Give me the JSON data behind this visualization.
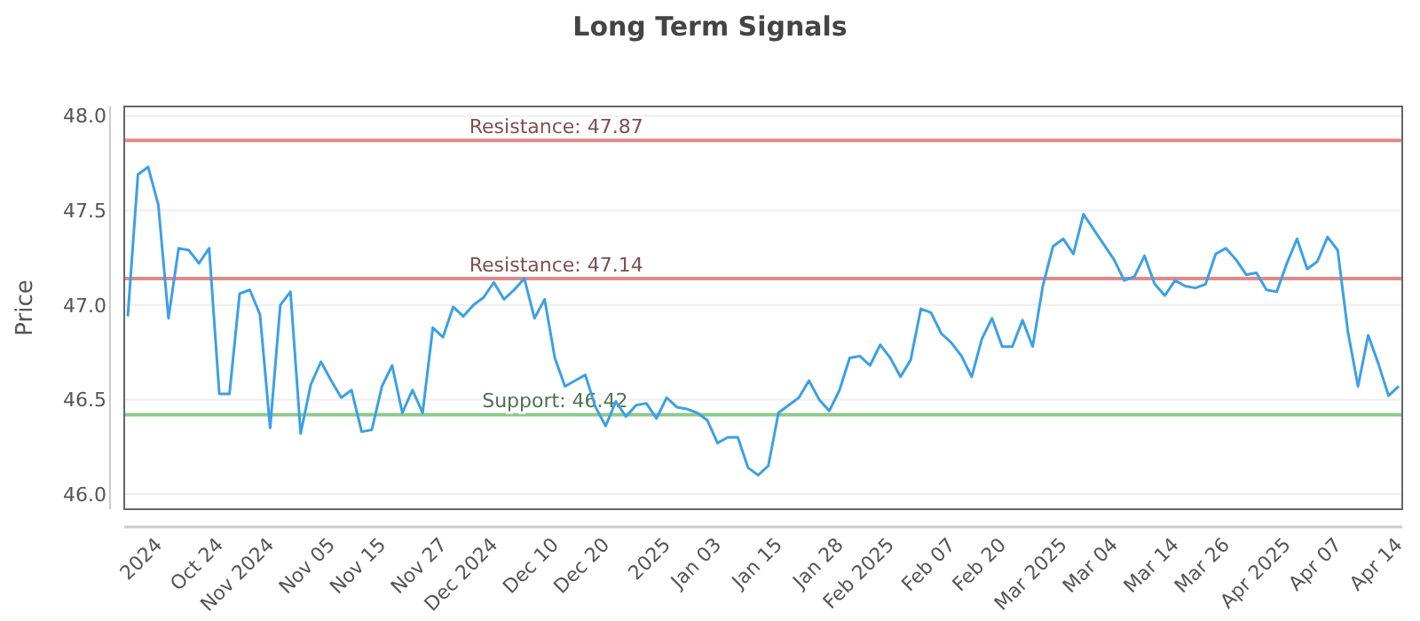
{
  "chart_data": {
    "type": "line",
    "title": "Long Term Signals",
    "ylabel": "Price",
    "categories": [
      null,
      null,
      null,
      "2024",
      null,
      null,
      null,
      null,
      null,
      "Oct 24",
      null,
      null,
      null,
      null,
      "Nov 2024",
      null,
      null,
      null,
      null,
      null,
      "Nov 05",
      null,
      null,
      null,
      null,
      "Nov 15",
      null,
      null,
      null,
      null,
      null,
      "Nov 27",
      null,
      null,
      null,
      null,
      "Dec 2024",
      null,
      null,
      null,
      null,
      null,
      "Dec 10",
      null,
      null,
      null,
      null,
      "Dec 20",
      null,
      null,
      null,
      null,
      null,
      "2025",
      null,
      null,
      null,
      null,
      "Jan 03",
      null,
      null,
      null,
      null,
      null,
      "Jan 15",
      null,
      null,
      null,
      null,
      null,
      "Jan 28",
      null,
      null,
      null,
      null,
      "Feb 2025",
      null,
      null,
      null,
      null,
      null,
      "Feb 07",
      null,
      null,
      null,
      null,
      "Feb 20",
      null,
      null,
      null,
      null,
      null,
      "Mar 2025",
      null,
      null,
      null,
      null,
      "Mar 04",
      null,
      null,
      null,
      null,
      null,
      "Mar 14",
      null,
      null,
      null,
      null,
      "Mar 26",
      null,
      null,
      null,
      null,
      null,
      "Apr 2025",
      null,
      null,
      null,
      null,
      "Apr 07",
      null,
      null,
      null,
      null,
      null,
      "Apr 14"
    ],
    "series": [
      {
        "color": "#3ca0e6",
        "values": [
          46.94,
          47.69,
          47.73,
          47.53,
          46.93,
          47.3,
          47.29,
          47.22,
          47.3,
          46.53,
          46.53,
          47.06,
          47.08,
          46.95,
          46.35,
          47.0,
          47.07,
          46.32,
          46.58,
          46.7,
          46.6,
          46.51,
          46.55,
          46.33,
          46.34,
          46.57,
          46.68,
          46.43,
          46.55,
          46.43,
          46.88,
          46.83,
          46.99,
          46.94,
          47.0,
          47.04,
          47.12,
          47.03,
          47.08,
          47.14,
          46.93,
          47.03,
          46.72,
          46.57,
          46.6,
          46.63,
          46.46,
          46.36,
          46.49,
          46.41,
          46.47,
          46.48,
          46.4,
          46.51,
          46.46,
          46.45,
          46.43,
          46.39,
          46.27,
          46.3,
          46.3,
          46.14,
          46.1,
          46.15,
          46.43,
          46.47,
          46.51,
          46.6,
          46.5,
          46.44,
          46.55,
          46.72,
          46.73,
          46.68,
          46.79,
          46.72,
          46.62,
          46.71,
          46.98,
          46.96,
          46.85,
          46.8,
          46.73,
          46.62,
          46.82,
          46.93,
          46.78,
          46.78,
          46.92,
          46.78,
          47.1,
          47.31,
          47.35,
          47.27,
          47.48,
          47.4,
          47.32,
          47.24,
          47.13,
          47.15,
          47.26,
          47.11,
          47.05,
          47.13,
          47.1,
          47.09,
          47.11,
          47.27,
          47.3,
          47.24,
          47.16,
          47.17,
          47.08,
          47.07,
          47.22,
          47.35,
          47.19,
          47.23,
          47.36,
          47.29,
          46.86,
          46.57,
          46.84,
          46.69,
          46.52,
          46.57
        ]
      }
    ],
    "ylim": [
      45.92,
      48.05
    ],
    "yticks": [
      {
        "value": 46,
        "label": "46.0"
      },
      {
        "value": 46.5,
        "label": "46.5"
      },
      {
        "value": 47,
        "label": "47.0"
      },
      {
        "value": 47.5,
        "label": "47.5"
      },
      {
        "value": 48,
        "label": "48.0"
      }
    ],
    "grid": "y",
    "marker": "none",
    "line_style": "solid",
    "ref_lines": [
      {
        "axis": "y",
        "value": 47.87,
        "label": "Resistance: 47.87",
        "color": "#e08a8a"
      },
      {
        "axis": "y",
        "value": 47.14,
        "label": "Resistance: 47.14",
        "color": "#e08a8a"
      },
      {
        "axis": "y",
        "value": 46.42,
        "label": "Support: 46.42",
        "color": "#8cc98c"
      }
    ]
  }
}
